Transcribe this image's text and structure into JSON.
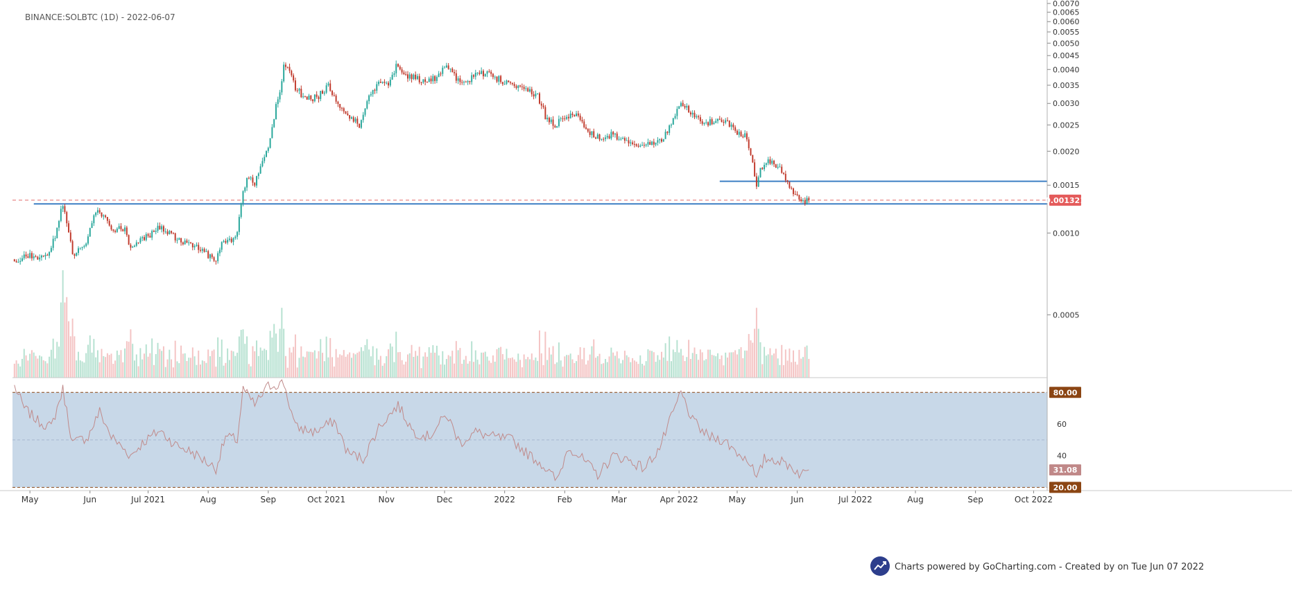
{
  "chart_data": {
    "type": "candlestick",
    "title": "BINANCE:SOLBTC (1D) - 2022-06-07",
    "symbol": "BINANCE:SOLBTC",
    "interval": "1D",
    "date": "2022-06-07",
    "y_scale": "log",
    "ylim": [
      0.00035,
      0.007
    ],
    "y_ticks": [
      {
        "value": 0.007,
        "label": "0.0070"
      },
      {
        "value": 0.0065,
        "label": "0.0065"
      },
      {
        "value": 0.006,
        "label": "0.0060"
      },
      {
        "value": 0.0055,
        "label": "0.0055"
      },
      {
        "value": 0.005,
        "label": "0.0050"
      },
      {
        "value": 0.0045,
        "label": "0.0045"
      },
      {
        "value": 0.004,
        "label": "0.0040"
      },
      {
        "value": 0.0035,
        "label": "0.0035"
      },
      {
        "value": 0.003,
        "label": "0.0030"
      },
      {
        "value": 0.0025,
        "label": "0.0025"
      },
      {
        "value": 0.002,
        "label": "0.0020"
      },
      {
        "value": 0.0015,
        "label": "0.0015"
      },
      {
        "value": 0.001,
        "label": "0.0010"
      },
      {
        "value": 0.0005,
        "label": "0.0005"
      }
    ],
    "x_range": [
      "2021-04-22",
      "2022-10-08"
    ],
    "x_ticks": [
      {
        "date": "2021-05-01",
        "label": "May"
      },
      {
        "date": "2021-06-01",
        "label": "Jun"
      },
      {
        "date": "2021-07-01",
        "label": "Jul 2021"
      },
      {
        "date": "2021-08-01",
        "label": "Aug"
      },
      {
        "date": "2021-09-01",
        "label": "Sep"
      },
      {
        "date": "2021-10-01",
        "label": "Oct 2021"
      },
      {
        "date": "2021-11-01",
        "label": "Nov"
      },
      {
        "date": "2021-12-01",
        "label": "Dec"
      },
      {
        "date": "2022-01-01",
        "label": "2022"
      },
      {
        "date": "2022-02-01",
        "label": "Feb"
      },
      {
        "date": "2022-03-01",
        "label": "Mar"
      },
      {
        "date": "2022-04-01",
        "label": "Apr 2022"
      },
      {
        "date": "2022-05-01",
        "label": "May"
      },
      {
        "date": "2022-06-01",
        "label": "Jun"
      },
      {
        "date": "2022-07-01",
        "label": "Jul 2022"
      },
      {
        "date": "2022-08-01",
        "label": "Aug"
      },
      {
        "date": "2022-09-01",
        "label": "Sep"
      },
      {
        "date": "2022-10-01",
        "label": "Oct 2022"
      }
    ],
    "price_keypoints": [
      [
        "2021-04-23",
        0.0008
      ],
      [
        "2021-05-01",
        0.00082
      ],
      [
        "2021-05-06",
        0.0008
      ],
      [
        "2021-05-10",
        0.00085
      ],
      [
        "2021-05-14",
        0.00095
      ],
      [
        "2021-05-18",
        0.00128
      ],
      [
        "2021-05-20",
        0.0011
      ],
      [
        "2021-05-23",
        0.00083
      ],
      [
        "2021-05-27",
        0.00088
      ],
      [
        "2021-05-31",
        0.00095
      ],
      [
        "2021-06-03",
        0.00115
      ],
      [
        "2021-06-06",
        0.0012
      ],
      [
        "2021-06-10",
        0.0011
      ],
      [
        "2021-06-14",
        0.00102
      ],
      [
        "2021-06-19",
        0.00105
      ],
      [
        "2021-06-22",
        0.00087
      ],
      [
        "2021-06-26",
        0.00095
      ],
      [
        "2021-07-01",
        0.00097
      ],
      [
        "2021-07-07",
        0.00105
      ],
      [
        "2021-07-12",
        0.001
      ],
      [
        "2021-07-16",
        0.00095
      ],
      [
        "2021-07-22",
        0.0009
      ],
      [
        "2021-07-28",
        0.00088
      ],
      [
        "2021-08-02",
        0.00082
      ],
      [
        "2021-08-05",
        0.00077
      ],
      [
        "2021-08-08",
        0.00092
      ],
      [
        "2021-08-12",
        0.00093
      ],
      [
        "2021-08-16",
        0.00098
      ],
      [
        "2021-08-19",
        0.00145
      ],
      [
        "2021-08-22",
        0.0016
      ],
      [
        "2021-08-25",
        0.0015
      ],
      [
        "2021-08-28",
        0.00175
      ],
      [
        "2021-09-01",
        0.0021
      ],
      [
        "2021-09-04",
        0.0027
      ],
      [
        "2021-09-07",
        0.0033
      ],
      [
        "2021-09-09",
        0.0041
      ],
      [
        "2021-09-12",
        0.00395
      ],
      [
        "2021-09-15",
        0.0034
      ],
      [
        "2021-09-19",
        0.0032
      ],
      [
        "2021-09-23",
        0.0031
      ],
      [
        "2021-09-27",
        0.0032
      ],
      [
        "2021-10-02",
        0.0035
      ],
      [
        "2021-10-07",
        0.003
      ],
      [
        "2021-10-12",
        0.0027
      ],
      [
        "2021-10-18",
        0.0025
      ],
      [
        "2021-10-23",
        0.0032
      ],
      [
        "2021-10-28",
        0.0035
      ],
      [
        "2021-11-02",
        0.0036
      ],
      [
        "2021-11-06",
        0.0041
      ],
      [
        "2021-11-10",
        0.0038
      ],
      [
        "2021-11-16",
        0.0037
      ],
      [
        "2021-11-21",
        0.0036
      ],
      [
        "2021-11-26",
        0.0037
      ],
      [
        "2021-12-01",
        0.0041
      ],
      [
        "2021-12-05",
        0.0039
      ],
      [
        "2021-12-10",
        0.0035
      ],
      [
        "2021-12-16",
        0.0038
      ],
      [
        "2021-12-22",
        0.0039
      ],
      [
        "2021-12-28",
        0.0037
      ],
      [
        "2022-01-02",
        0.0036
      ],
      [
        "2022-01-08",
        0.0034
      ],
      [
        "2022-01-14",
        0.0033
      ],
      [
        "2022-01-18",
        0.0032
      ],
      [
        "2022-01-22",
        0.0027
      ],
      [
        "2022-01-27",
        0.0025
      ],
      [
        "2022-02-02",
        0.0027
      ],
      [
        "2022-02-07",
        0.0027
      ],
      [
        "2022-02-12",
        0.0024
      ],
      [
        "2022-02-18",
        0.00225
      ],
      [
        "2022-02-25",
        0.0023
      ],
      [
        "2022-03-05",
        0.0022
      ],
      [
        "2022-03-12",
        0.00205
      ],
      [
        "2022-03-18",
        0.00215
      ],
      [
        "2022-03-24",
        0.00225
      ],
      [
        "2022-03-31",
        0.0028
      ],
      [
        "2022-04-03",
        0.003
      ],
      [
        "2022-04-08",
        0.0027
      ],
      [
        "2022-04-14",
        0.00255
      ],
      [
        "2022-04-20",
        0.0026
      ],
      [
        "2022-04-26",
        0.00255
      ],
      [
        "2022-05-01",
        0.00235
      ],
      [
        "2022-05-06",
        0.00225
      ],
      [
        "2022-05-09",
        0.0018
      ],
      [
        "2022-05-11",
        0.00145
      ],
      [
        "2022-05-13",
        0.0017
      ],
      [
        "2022-05-17",
        0.00185
      ],
      [
        "2022-05-22",
        0.00175
      ],
      [
        "2022-05-26",
        0.0016
      ],
      [
        "2022-05-28",
        0.00145
      ],
      [
        "2022-06-01",
        0.0014
      ],
      [
        "2022-06-04",
        0.0013
      ],
      [
        "2022-06-07",
        0.00132
      ]
    ],
    "volume_spikes": [
      [
        "2021-05-18",
        1.0
      ],
      [
        "2021-05-20",
        0.75
      ],
      [
        "2021-05-23",
        0.55
      ],
      [
        "2021-06-22",
        0.45
      ],
      [
        "2021-08-19",
        0.45
      ],
      [
        "2021-09-04",
        0.5
      ],
      [
        "2021-09-08",
        0.65
      ],
      [
        "2022-05-11",
        0.65
      ]
    ],
    "horizontal_lines": [
      {
        "value": 0.00155,
        "start": "2022-04-22",
        "color": "#3d7fc4",
        "style": "solid"
      },
      {
        "value": 0.00128,
        "start": "2021-05-03",
        "color": "#3d7fc4",
        "style": "solid"
      },
      {
        "value": 0.001321,
        "start": "2021-04-22",
        "color": "#e46a6a",
        "style": "dashed"
      }
    ],
    "last_price": {
      "value": 0.001321,
      "label": "0.001321",
      "color": "#e45b5b"
    },
    "rsi": {
      "ylim": [
        18,
        88
      ],
      "y_ticks": [
        {
          "value": 60,
          "label": "60"
        },
        {
          "value": 40,
          "label": "40"
        }
      ],
      "band": {
        "upper": 80,
        "lower": 20,
        "fill": "#c8d8e8"
      },
      "upper_label": "80.00",
      "lower_label": "20.00",
      "mid_line": 50,
      "current": {
        "value": 31.08,
        "label": "31.08"
      },
      "keypoints": [
        [
          "2021-04-23",
          84
        ],
        [
          "2021-04-28",
          70
        ],
        [
          "2021-05-05",
          62
        ],
        [
          "2021-05-12",
          58
        ],
        [
          "2021-05-18",
          82
        ],
        [
          "2021-05-23",
          48
        ],
        [
          "2021-05-31",
          52
        ],
        [
          "2021-06-06",
          68
        ],
        [
          "2021-06-12",
          52
        ],
        [
          "2021-06-22",
          40
        ],
        [
          "2021-06-28",
          48
        ],
        [
          "2021-07-07",
          56
        ],
        [
          "2021-07-15",
          47
        ],
        [
          "2021-07-24",
          42
        ],
        [
          "2021-08-05",
          32
        ],
        [
          "2021-08-10",
          52
        ],
        [
          "2021-08-16",
          50
        ],
        [
          "2021-08-19",
          82
        ],
        [
          "2021-08-25",
          72
        ],
        [
          "2021-09-01",
          84
        ],
        [
          "2021-09-09",
          86
        ],
        [
          "2021-09-15",
          58
        ],
        [
          "2021-09-25",
          55
        ],
        [
          "2021-10-05",
          62
        ],
        [
          "2021-10-12",
          42
        ],
        [
          "2021-10-20",
          38
        ],
        [
          "2021-10-28",
          58
        ],
        [
          "2021-11-07",
          72
        ],
        [
          "2021-11-15",
          55
        ],
        [
          "2021-11-23",
          52
        ],
        [
          "2021-12-02",
          66
        ],
        [
          "2021-12-09",
          48
        ],
        [
          "2021-12-17",
          55
        ],
        [
          "2021-12-25",
          52
        ],
        [
          "2022-01-05",
          50
        ],
        [
          "2022-01-12",
          42
        ],
        [
          "2022-01-20",
          35
        ],
        [
          "2022-01-28",
          24
        ],
        [
          "2022-02-03",
          46
        ],
        [
          "2022-02-10",
          38
        ],
        [
          "2022-02-18",
          28
        ],
        [
          "2022-02-26",
          40
        ],
        [
          "2022-03-05",
          38
        ],
        [
          "2022-03-14",
          32
        ],
        [
          "2022-03-22",
          45
        ],
        [
          "2022-04-02",
          80
        ],
        [
          "2022-04-08",
          62
        ],
        [
          "2022-04-16",
          52
        ],
        [
          "2022-04-24",
          50
        ],
        [
          "2022-05-01",
          42
        ],
        [
          "2022-05-08",
          36
        ],
        [
          "2022-05-11",
          24
        ],
        [
          "2022-05-15",
          38
        ],
        [
          "2022-05-20",
          38
        ],
        [
          "2022-05-28",
          34
        ],
        [
          "2022-06-03",
          28
        ],
        [
          "2022-06-07",
          31
        ]
      ]
    },
    "colors": {
      "up": "#26a69a",
      "down": "#c0392b",
      "rsi_line": "#c08a8a",
      "label_brown": "#8b4513"
    }
  },
  "watermark": {
    "text": "Charts powered by GoCharting.com - Created by  on Tue Jun 07 2022",
    "logo_color": "#2d3e8c"
  }
}
